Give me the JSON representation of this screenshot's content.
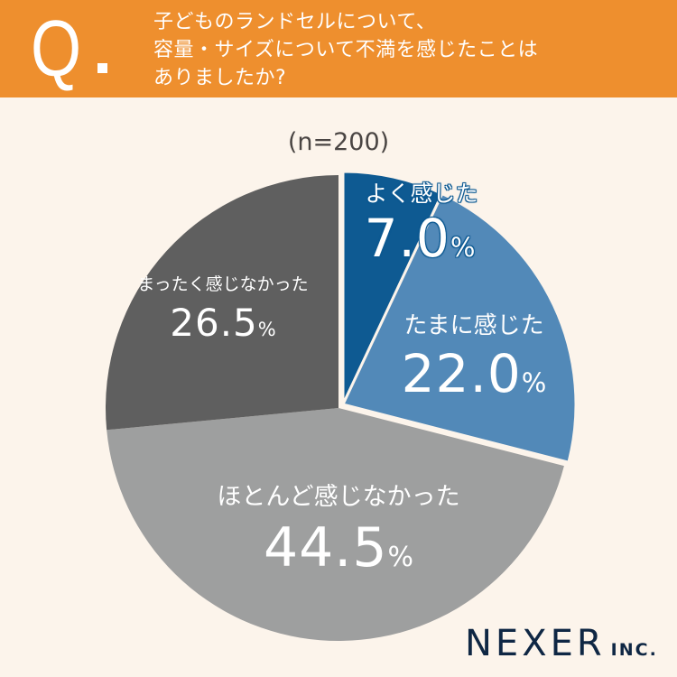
{
  "header": {
    "q_mark": "Q",
    "question_lines": [
      "子どものランドセルについて、",
      "容量・サイズについて不満を感じたことは",
      "ありましたか?"
    ],
    "bg_color": "#EE8F2E"
  },
  "sample_label": "(n=200)",
  "slices": [
    {
      "label": "よく感じた",
      "value_text": "7.0",
      "pct_sign": "%",
      "color": "#0E5A92"
    },
    {
      "label": "たまに感じた",
      "value_text": "22.0",
      "pct_sign": "%",
      "color": "#5289B8"
    },
    {
      "label": "ほとんど感じなかった",
      "value_text": "44.5",
      "pct_sign": "%",
      "color": "#9E9F9F"
    },
    {
      "label": "まったく感じなかった",
      "value_text": "26.5",
      "pct_sign": "%",
      "color": "#5F5F5F"
    }
  ],
  "logo": {
    "main": "NEXER",
    "suffix": "INC."
  },
  "chart_data": {
    "type": "pie",
    "title": "子どものランドセルについて、容量・サイズについて不満を感じたことはありましたか?",
    "subtitle": "(n=200)",
    "categories": [
      "よく感じた",
      "たまに感じた",
      "ほとんど感じなかった",
      "まったく感じなかった"
    ],
    "values": [
      7.0,
      22.0,
      44.5,
      26.5
    ],
    "unit": "%",
    "start_angle": "12 o'clock, clockwise",
    "exploded": [
      "よく感じた",
      "たまに感じた"
    ],
    "colors": [
      "#0E5A92",
      "#5289B8",
      "#9E9F9F",
      "#5F5F5F"
    ],
    "legend": "none (labels inside slices)"
  }
}
